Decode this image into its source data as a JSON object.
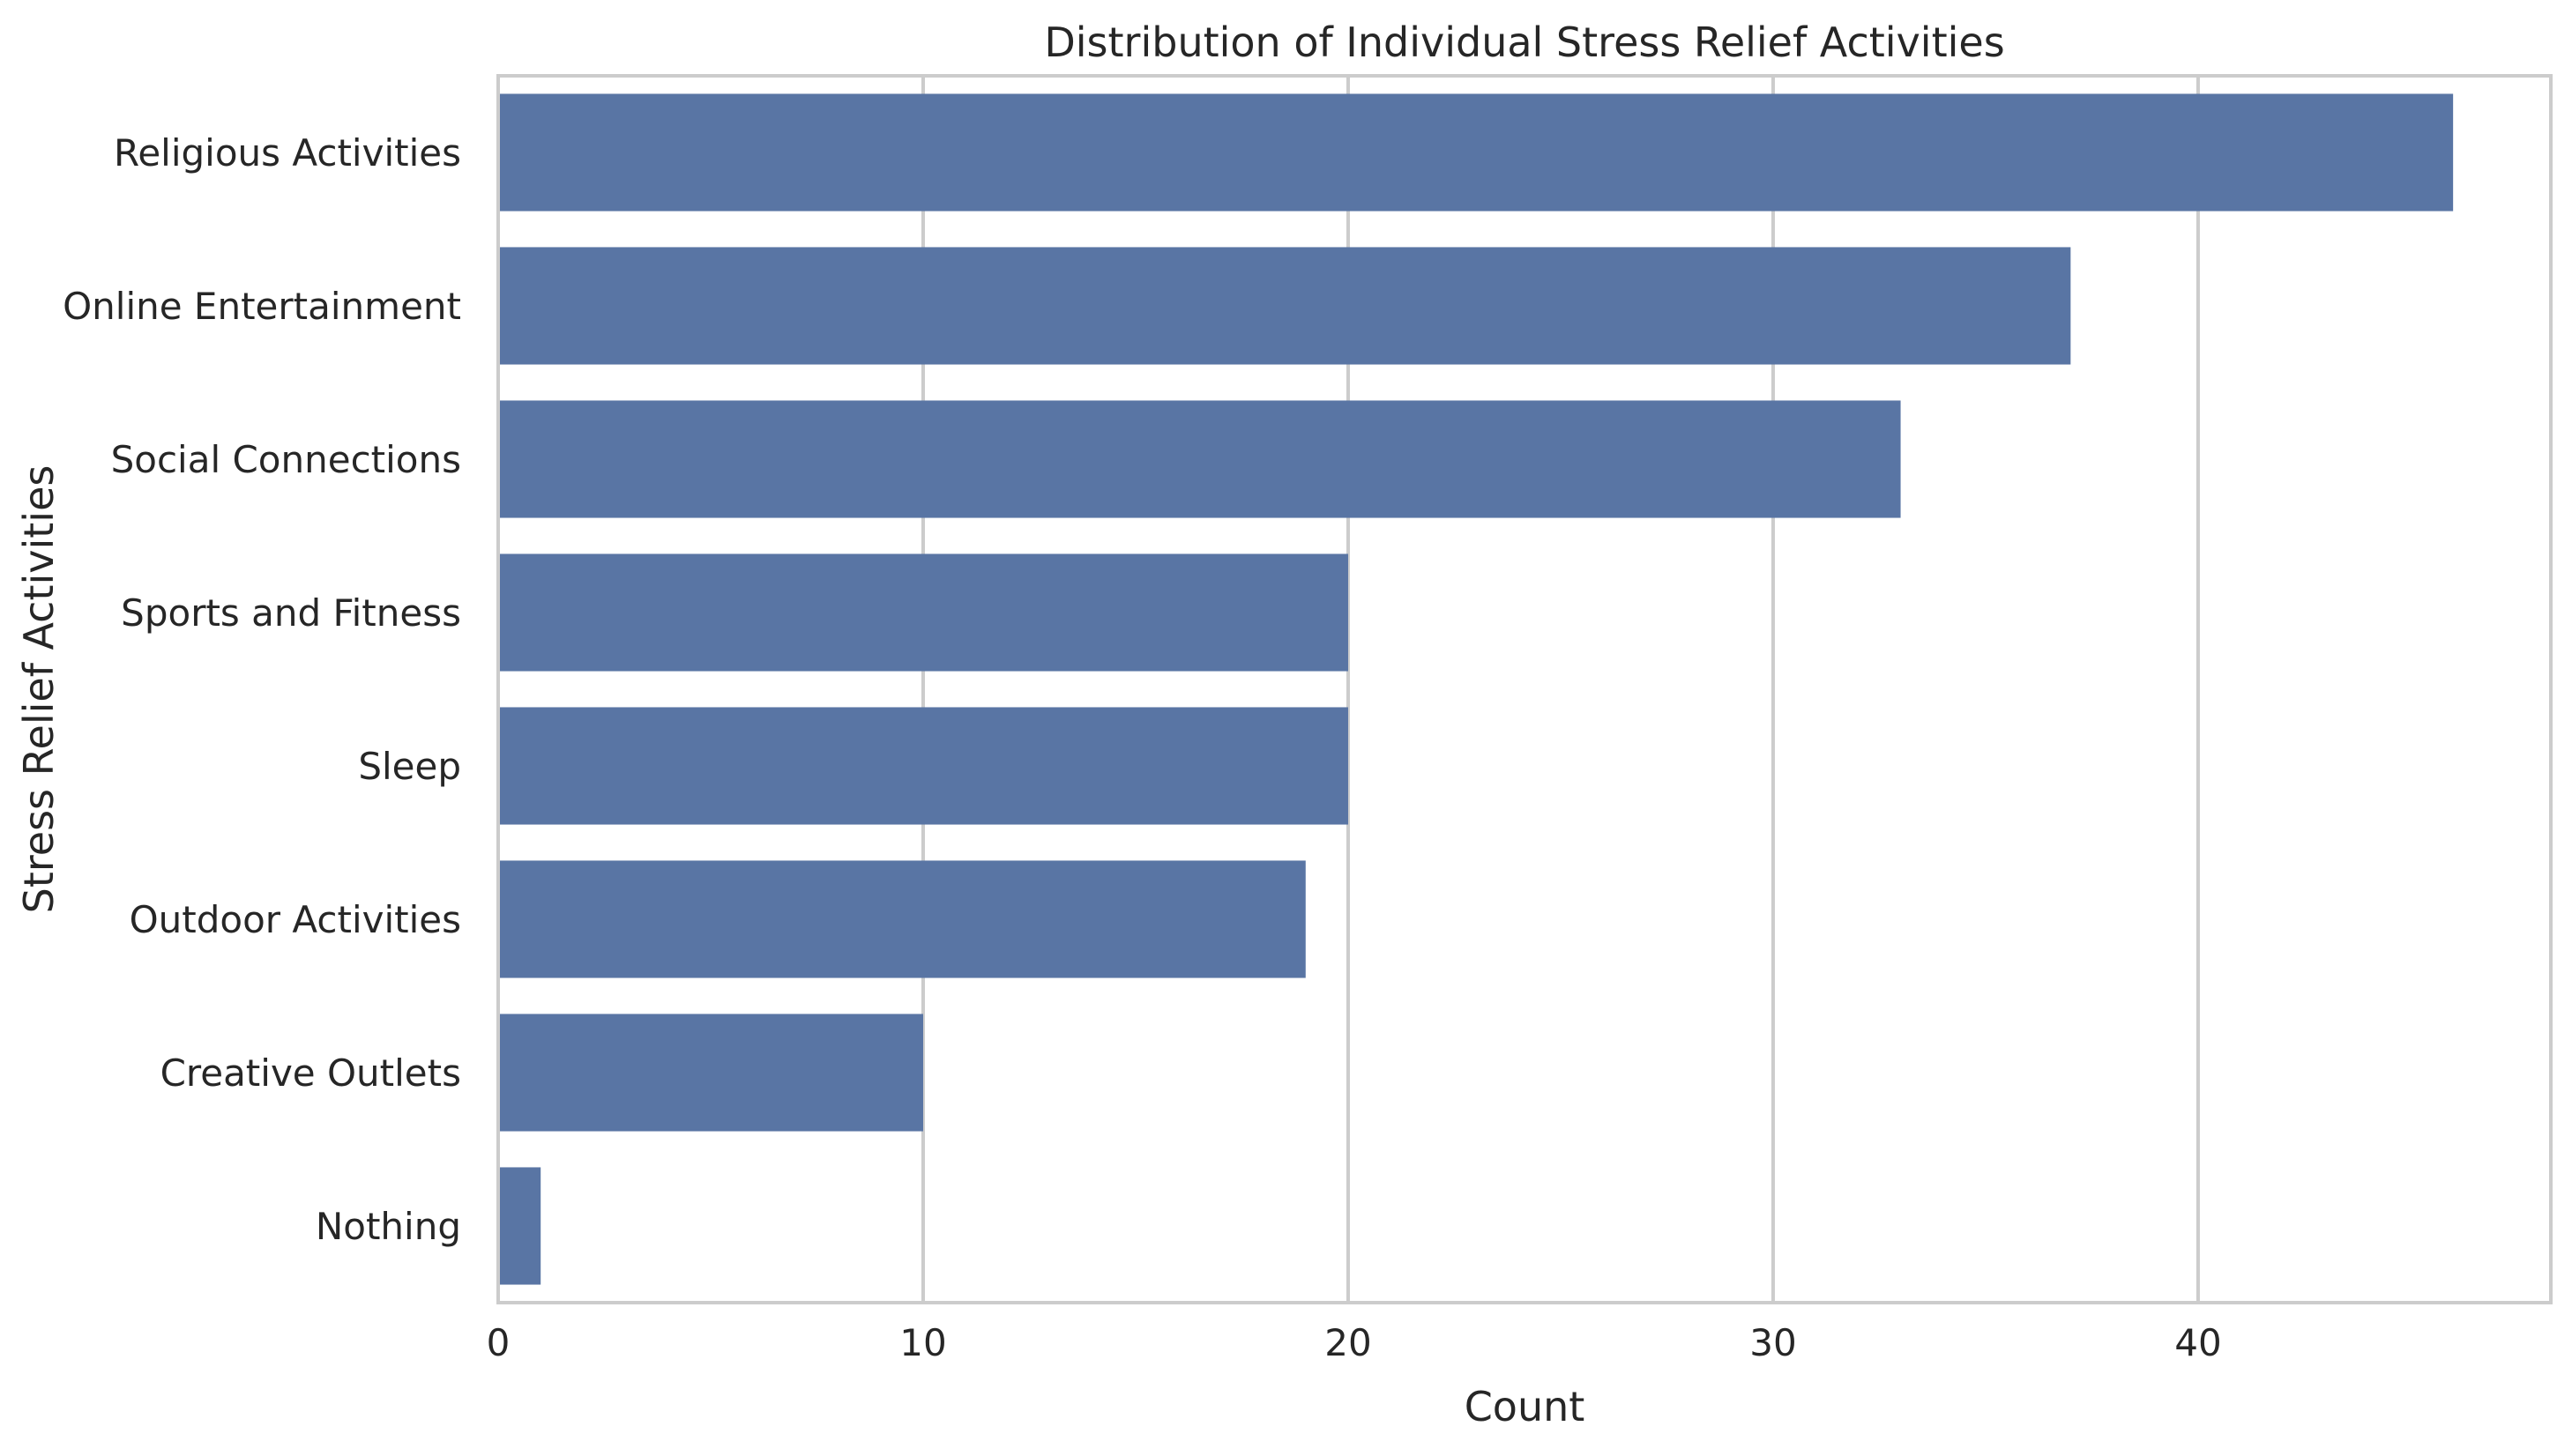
{
  "chart_data": {
    "type": "bar",
    "orientation": "horizontal",
    "title": "Distribution of Individual Stress Relief Activities",
    "xlabel": "Count",
    "ylabel": "Stress Relief Activities",
    "categories": [
      "Religious Activities",
      "Online Entertainment",
      "Social Connections",
      "Sports and Fitness",
      "Sleep",
      "Outdoor Activities",
      "Creative Outlets",
      "Nothing"
    ],
    "values": [
      46,
      37,
      33,
      20,
      20,
      19,
      10,
      1
    ],
    "xlim": [
      0,
      48.3
    ],
    "xticks": [
      0,
      10,
      20,
      30,
      40
    ],
    "grid": true,
    "colors": {
      "bar": "#5975a4",
      "grid": "#cccccc",
      "frame": "#cccccc",
      "text": "#262626"
    }
  }
}
